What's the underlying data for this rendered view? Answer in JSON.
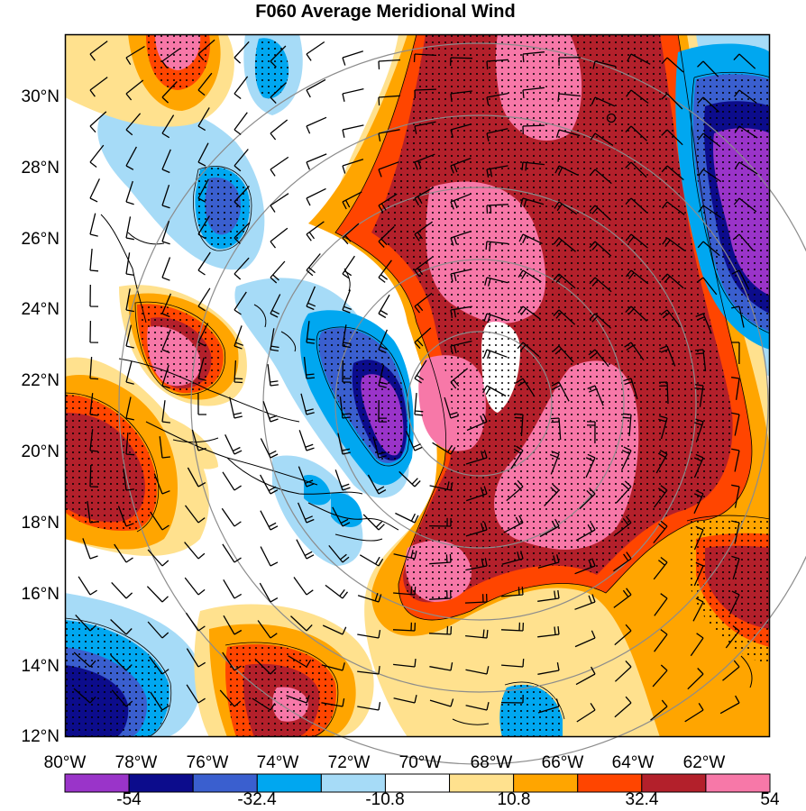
{
  "title": "F060 Average Meridional Wind",
  "lat_labels": [
    "30°N",
    "28°N",
    "26°N",
    "24°N",
    "22°N",
    "20°N",
    "18°N",
    "16°N",
    "14°N",
    "12°N"
  ],
  "lon_labels": [
    "80°W",
    "78°W",
    "76°W",
    "74°W",
    "72°W",
    "70°W",
    "68°W",
    "66°W",
    "64°W",
    "62°W"
  ],
  "colorbar": {
    "labels": [
      "-54",
      "-32.4",
      "-10.8",
      "10.8",
      "32.4",
      "54"
    ],
    "colors": [
      "#9a34c9",
      "#0c0c8c",
      "#3a5fcf",
      "#00a7f0",
      "#a6dbf7",
      "#ffffff",
      "#ffe18e",
      "#ffa500",
      "#ff4500",
      "#b3202b",
      "#f778a8"
    ]
  },
  "palette": {
    "strong_neg": "#9a34c9",
    "neg3": "#0c0c8c",
    "neg2": "#3a5fcf",
    "neg1": "#00a7f0",
    "weak_neg": "#a6dbf7",
    "neutral": "#ffffff",
    "weak_pos": "#ffe18e",
    "pos1": "#ffa500",
    "pos2": "#ff4500",
    "pos3": "#b3202b",
    "strong_pos": "#f778a8",
    "range_ring": "#8c8c8c"
  }
}
